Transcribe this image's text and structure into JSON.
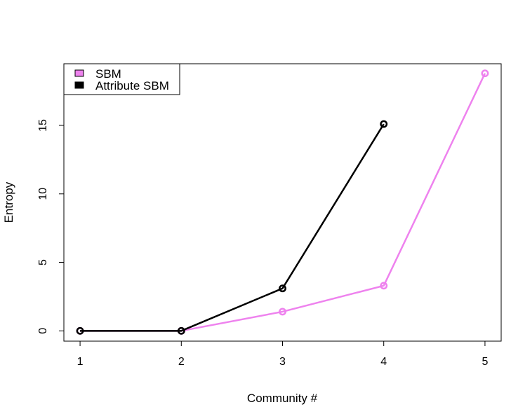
{
  "chart_data": {
    "type": "line",
    "title": "",
    "xlabel": "Community #",
    "ylabel": "Entropy",
    "xlim": [
      0.84,
      5.16
    ],
    "ylim": [
      -0.75,
      19.5
    ],
    "x_ticks": [
      1,
      2,
      3,
      4,
      5
    ],
    "y_ticks": [
      0,
      5,
      10,
      15
    ],
    "grid": false,
    "legend_position": "top-left",
    "series": [
      {
        "name": "SBM",
        "color": "#EE82EE",
        "x": [
          1,
          2,
          3,
          4,
          5
        ],
        "y": [
          0,
          0,
          1.4,
          3.3,
          18.8
        ]
      },
      {
        "name": "Attribute SBM",
        "color": "#000000",
        "x": [
          1,
          2,
          3,
          4
        ],
        "y": [
          0,
          0,
          3.1,
          15.1
        ]
      }
    ]
  }
}
